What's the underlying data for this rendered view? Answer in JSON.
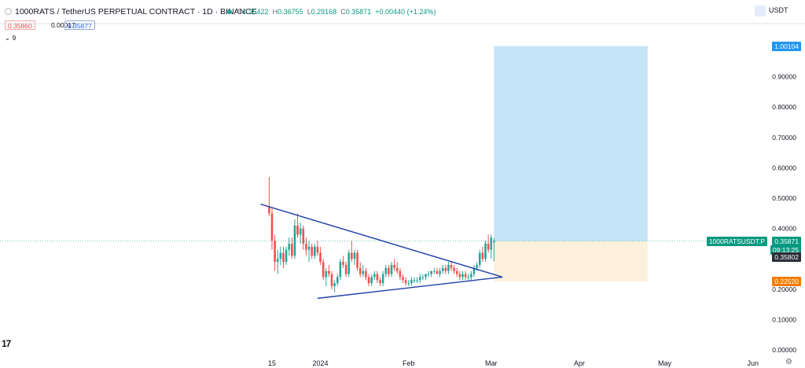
{
  "header": {
    "symbol_title": "1000RATS / TetherUS PERPETUAL CONTRACT · 1D · BINANCE",
    "open_label": "O",
    "open": "0.35422",
    "high_label": "H",
    "high": "0.36755",
    "low_label": "L",
    "low": "0.29168",
    "close_label": "C",
    "close": "0.35871",
    "change": "+0.00440 (+1.24%)",
    "sell_price": "0.35860",
    "spread": "0.00017",
    "buy_price": "0.35877",
    "indicator_label": "9",
    "currency": "USDT"
  },
  "tags": {
    "target_price": "1.00104",
    "symbol": "1000RATSUSDT.P",
    "last_price": "0.35871",
    "countdown": "09:13:25",
    "entry_price": "0.35802",
    "stop_price": "0.22520"
  },
  "colors": {
    "up": "#26a69a",
    "down": "#ef5350",
    "trendline": "#1e3fa8",
    "profit_zone": "#c5e3f7",
    "loss_zone": "#fdf1dc",
    "target_tag": "#2196f3",
    "stop_tag": "#f57c00",
    "price_tag": "#089981"
  },
  "chart_data": {
    "type": "candlestick",
    "y_axis": {
      "min": 0,
      "max": 1.0,
      "ticks": [
        "0.00000",
        "0.10000",
        "0.20000",
        "0.30000",
        "0.40000",
        "0.50000",
        "0.60000",
        "0.70000",
        "0.80000",
        "0.90000"
      ]
    },
    "x_axis": {
      "ticks": [
        {
          "label": "15",
          "date": "2023-12-15"
        },
        {
          "label": "2024",
          "date": "2024-01-01"
        },
        {
          "label": "Feb",
          "date": "2024-02-01"
        },
        {
          "label": "Mar",
          "date": "2024-03-01"
        },
        {
          "label": "Apr",
          "date": "2024-04-01"
        },
        {
          "label": "May",
          "date": "2024-05-01"
        },
        {
          "label": "Jun",
          "date": "2024-06-01"
        }
      ]
    },
    "candles": [
      [
        "2023-12-14",
        0.47,
        0.57,
        0.44,
        0.45
      ],
      [
        "2023-12-15",
        0.45,
        0.47,
        0.33,
        0.36
      ],
      [
        "2023-12-16",
        0.36,
        0.38,
        0.26,
        0.29
      ],
      [
        "2023-12-17",
        0.29,
        0.33,
        0.25,
        0.3
      ],
      [
        "2023-12-18",
        0.3,
        0.34,
        0.28,
        0.32
      ],
      [
        "2023-12-19",
        0.32,
        0.34,
        0.27,
        0.29
      ],
      [
        "2023-12-20",
        0.29,
        0.34,
        0.28,
        0.33
      ],
      [
        "2023-12-21",
        0.33,
        0.37,
        0.31,
        0.35
      ],
      [
        "2023-12-22",
        0.35,
        0.37,
        0.3,
        0.31
      ],
      [
        "2023-12-23",
        0.31,
        0.43,
        0.3,
        0.41
      ],
      [
        "2023-12-24",
        0.41,
        0.45,
        0.37,
        0.38
      ],
      [
        "2023-12-25",
        0.38,
        0.42,
        0.35,
        0.4
      ],
      [
        "2023-12-26",
        0.4,
        0.41,
        0.33,
        0.35
      ],
      [
        "2023-12-27",
        0.35,
        0.37,
        0.31,
        0.33
      ],
      [
        "2023-12-28",
        0.33,
        0.36,
        0.29,
        0.34
      ],
      [
        "2023-12-29",
        0.34,
        0.35,
        0.3,
        0.31
      ],
      [
        "2023-12-30",
        0.31,
        0.35,
        0.3,
        0.34
      ],
      [
        "2023-12-31",
        0.34,
        0.36,
        0.31,
        0.32
      ],
      [
        "2024-01-01",
        0.32,
        0.34,
        0.28,
        0.29
      ],
      [
        "2024-01-02",
        0.29,
        0.3,
        0.23,
        0.24
      ],
      [
        "2024-01-03",
        0.24,
        0.27,
        0.21,
        0.26
      ],
      [
        "2024-01-04",
        0.26,
        0.28,
        0.24,
        0.25
      ],
      [
        "2024-01-05",
        0.25,
        0.26,
        0.2,
        0.21
      ],
      [
        "2024-01-06",
        0.21,
        0.23,
        0.19,
        0.22
      ],
      [
        "2024-01-07",
        0.22,
        0.25,
        0.21,
        0.24
      ],
      [
        "2024-01-08",
        0.24,
        0.3,
        0.23,
        0.29
      ],
      [
        "2024-01-09",
        0.29,
        0.31,
        0.27,
        0.28
      ],
      [
        "2024-01-10",
        0.28,
        0.29,
        0.24,
        0.25
      ],
      [
        "2024-01-11",
        0.25,
        0.33,
        0.24,
        0.32
      ],
      [
        "2024-01-12",
        0.32,
        0.36,
        0.29,
        0.3
      ],
      [
        "2024-01-13",
        0.3,
        0.33,
        0.28,
        0.32
      ],
      [
        "2024-01-14",
        0.32,
        0.33,
        0.26,
        0.27
      ],
      [
        "2024-01-15",
        0.27,
        0.29,
        0.24,
        0.25
      ],
      [
        "2024-01-16",
        0.25,
        0.28,
        0.24,
        0.26
      ],
      [
        "2024-01-17",
        0.26,
        0.27,
        0.23,
        0.24
      ],
      [
        "2024-01-18",
        0.24,
        0.25,
        0.21,
        0.22
      ],
      [
        "2024-01-19",
        0.22,
        0.25,
        0.21,
        0.24
      ],
      [
        "2024-01-20",
        0.24,
        0.26,
        0.23,
        0.25
      ],
      [
        "2024-01-21",
        0.25,
        0.26,
        0.22,
        0.23
      ],
      [
        "2024-01-22",
        0.23,
        0.24,
        0.21,
        0.22
      ],
      [
        "2024-01-23",
        0.22,
        0.26,
        0.21,
        0.25
      ],
      [
        "2024-01-24",
        0.25,
        0.28,
        0.24,
        0.27
      ],
      [
        "2024-01-25",
        0.27,
        0.28,
        0.24,
        0.25
      ],
      [
        "2024-01-26",
        0.25,
        0.29,
        0.24,
        0.28
      ],
      [
        "2024-01-27",
        0.28,
        0.3,
        0.26,
        0.27
      ],
      [
        "2024-01-28",
        0.27,
        0.29,
        0.25,
        0.26
      ],
      [
        "2024-01-29",
        0.26,
        0.27,
        0.23,
        0.24
      ],
      [
        "2024-01-30",
        0.24,
        0.25,
        0.22,
        0.23
      ],
      [
        "2024-01-31",
        0.23,
        0.24,
        0.21,
        0.22
      ],
      [
        "2024-02-01",
        0.22,
        0.23,
        0.21,
        0.22
      ],
      [
        "2024-02-02",
        0.22,
        0.24,
        0.21,
        0.23
      ],
      [
        "2024-02-03",
        0.23,
        0.24,
        0.22,
        0.23
      ],
      [
        "2024-02-04",
        0.23,
        0.24,
        0.22,
        0.23
      ],
      [
        "2024-02-05",
        0.23,
        0.25,
        0.22,
        0.24
      ],
      [
        "2024-02-06",
        0.24,
        0.25,
        0.23,
        0.24
      ],
      [
        "2024-02-07",
        0.24,
        0.25,
        0.23,
        0.25
      ],
      [
        "2024-02-08",
        0.25,
        0.26,
        0.24,
        0.25
      ],
      [
        "2024-02-09",
        0.25,
        0.26,
        0.24,
        0.26
      ],
      [
        "2024-02-10",
        0.26,
        0.27,
        0.25,
        0.26
      ],
      [
        "2024-02-11",
        0.26,
        0.27,
        0.25,
        0.25
      ],
      [
        "2024-02-12",
        0.25,
        0.27,
        0.24,
        0.26
      ],
      [
        "2024-02-13",
        0.26,
        0.28,
        0.25,
        0.27
      ],
      [
        "2024-02-14",
        0.27,
        0.28,
        0.25,
        0.26
      ],
      [
        "2024-02-15",
        0.26,
        0.29,
        0.25,
        0.28
      ],
      [
        "2024-02-16",
        0.28,
        0.29,
        0.26,
        0.27
      ],
      [
        "2024-02-17",
        0.27,
        0.28,
        0.25,
        0.26
      ],
      [
        "2024-02-18",
        0.26,
        0.27,
        0.24,
        0.25
      ],
      [
        "2024-02-19",
        0.25,
        0.26,
        0.23,
        0.24
      ],
      [
        "2024-02-20",
        0.24,
        0.26,
        0.23,
        0.25
      ],
      [
        "2024-02-21",
        0.25,
        0.26,
        0.23,
        0.24
      ],
      [
        "2024-02-22",
        0.24,
        0.25,
        0.23,
        0.24
      ],
      [
        "2024-02-23",
        0.24,
        0.26,
        0.23,
        0.25
      ],
      [
        "2024-02-24",
        0.25,
        0.28,
        0.24,
        0.27
      ],
      [
        "2024-02-25",
        0.27,
        0.29,
        0.26,
        0.28
      ],
      [
        "2024-02-26",
        0.28,
        0.33,
        0.27,
        0.32
      ],
      [
        "2024-02-27",
        0.32,
        0.34,
        0.29,
        0.3
      ],
      [
        "2024-02-28",
        0.3,
        0.36,
        0.29,
        0.35
      ],
      [
        "2024-02-29",
        0.35,
        0.38,
        0.32,
        0.33
      ],
      [
        "2024-03-01",
        0.33,
        0.38,
        0.3,
        0.37
      ],
      [
        "2024-03-02",
        0.35422,
        0.36755,
        0.29168,
        0.35871
      ]
    ],
    "trendlines": [
      {
        "name": "upper",
        "from": [
          "2023-12-11",
          0.48
        ],
        "to": [
          "2024-03-05",
          0.24
        ]
      },
      {
        "name": "lower",
        "from": [
          "2023-12-31",
          0.17
        ],
        "to": [
          "2024-03-05",
          0.24
        ]
      }
    ],
    "position": {
      "type": "long",
      "start": "2024-03-02",
      "end": "2024-04-25",
      "entry": 0.35802,
      "target": 1.00104,
      "stop": 0.2252
    },
    "last_price": 0.35871
  }
}
